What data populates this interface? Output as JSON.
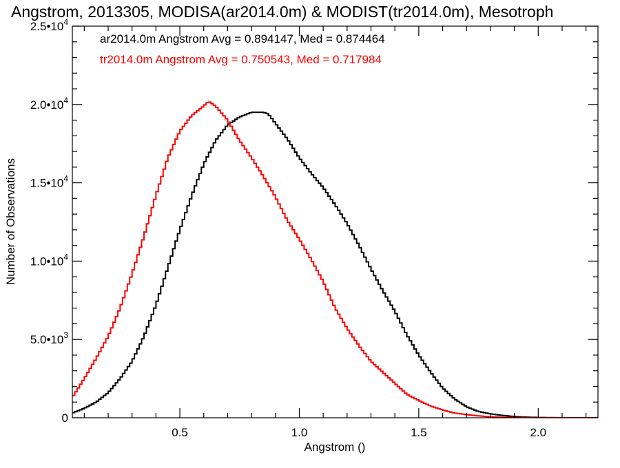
{
  "chart_data": {
    "type": "line",
    "title": "Angstrom, 2013305, MODISA(ar2014.0m) & MODIST(tr2014.0m), Mesotroph",
    "xlabel": "Angstrom ()",
    "ylabel": "Number of Observations",
    "xlim": [
      0.05,
      2.25
    ],
    "ylim": [
      0,
      25000
    ],
    "x_ticks": [
      {
        "value": 0.5,
        "label": "0.5"
      },
      {
        "value": 1.0,
        "label": "1.0"
      },
      {
        "value": 1.5,
        "label": "1.5"
      },
      {
        "value": 2.0,
        "label": "2.0"
      }
    ],
    "y_ticks": [
      {
        "value": 0,
        "mant": "0",
        "exp": ""
      },
      {
        "value": 5000,
        "mant": "5.0•10",
        "exp": "3"
      },
      {
        "value": 10000,
        "mant": "1.0•10",
        "exp": "4"
      },
      {
        "value": 15000,
        "mant": "1.5•10",
        "exp": "4"
      },
      {
        "value": 20000,
        "mant": "2.0•10",
        "exp": "4"
      },
      {
        "value": 25000,
        "mant": "2.5•10",
        "exp": "4"
      }
    ],
    "grid": false,
    "step_width": 0.01,
    "annotations": [
      {
        "text": "ar2014.0m Angstrom Avg = 0.894147, Med = 0.874464",
        "color": "#000000"
      },
      {
        "text": "tr2014.0m Angstrom Avg = 0.750543, Med = 0.717984",
        "color": "#ff0000"
      }
    ],
    "series": [
      {
        "color": "#000000",
        "x": [
          0.05,
          0.1,
          0.15,
          0.2,
          0.25,
          0.3,
          0.35,
          0.4,
          0.45,
          0.5,
          0.55,
          0.6,
          0.65,
          0.7,
          0.75,
          0.8,
          0.85,
          0.87,
          0.9,
          0.95,
          1.0,
          1.05,
          1.1,
          1.15,
          1.2,
          1.25,
          1.3,
          1.35,
          1.4,
          1.45,
          1.5,
          1.55,
          1.6,
          1.65,
          1.7,
          1.75,
          1.8,
          1.85,
          1.9,
          1.95,
          2.0,
          2.05,
          2.1,
          2.15,
          2.2,
          2.25
        ],
        "y": [
          300,
          600,
          1000,
          1600,
          2500,
          3600,
          5200,
          7200,
          9600,
          12000,
          14200,
          16200,
          17700,
          18700,
          19200,
          19500,
          19500,
          19400,
          18800,
          17800,
          16600,
          15600,
          14700,
          13600,
          12400,
          11000,
          9500,
          8100,
          6800,
          5300,
          4000,
          2900,
          1900,
          1200,
          700,
          400,
          250,
          150,
          80,
          40,
          20,
          10,
          5,
          0,
          0,
          0
        ]
      },
      {
        "color": "#ff0000",
        "x": [
          0.05,
          0.1,
          0.15,
          0.2,
          0.25,
          0.3,
          0.35,
          0.4,
          0.45,
          0.5,
          0.55,
          0.6,
          0.62,
          0.65,
          0.7,
          0.75,
          0.8,
          0.85,
          0.9,
          0.95,
          1.0,
          1.05,
          1.1,
          1.15,
          1.2,
          1.25,
          1.3,
          1.35,
          1.4,
          1.45,
          1.5,
          1.55,
          1.6,
          1.65,
          1.7,
          1.75,
          1.8,
          1.85,
          1.9,
          1.95,
          2.0,
          2.05,
          2.1,
          2.15,
          2.2,
          2.25
        ],
        "y": [
          1300,
          2500,
          3800,
          5200,
          7000,
          9200,
          11600,
          14200,
          16600,
          18300,
          19300,
          19900,
          20200,
          19900,
          19000,
          17700,
          16600,
          15400,
          14100,
          12600,
          11400,
          10100,
          8700,
          7000,
          5700,
          4600,
          3600,
          2900,
          2200,
          1500,
          1100,
          750,
          500,
          300,
          200,
          120,
          60,
          30,
          15,
          5,
          0,
          0,
          0,
          0,
          0,
          0
        ]
      }
    ]
  }
}
